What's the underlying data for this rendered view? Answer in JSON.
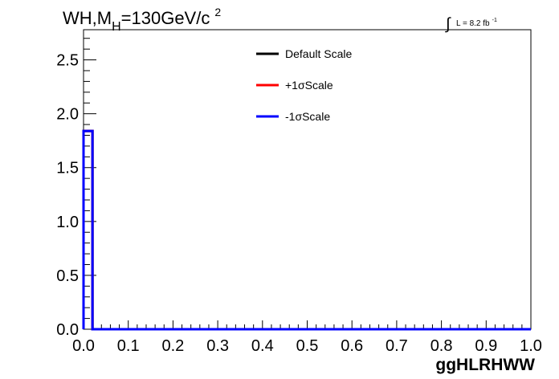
{
  "chart_data": {
    "type": "line",
    "title_main": "WH,M",
    "title_sub": "H",
    "title_rest": "=130GeV/c",
    "title_sup": "2",
    "lumi_integral": "∫",
    "lumi_text": "L = 8.2 fb",
    "lumi_sup": "-1",
    "xlabel": "ggHLRHWW",
    "ylabel": "",
    "xlim": [
      0.0,
      1.0
    ],
    "ylim": [
      0.0,
      2.78
    ],
    "x_ticks": [
      0.0,
      0.1,
      0.2,
      0.3,
      0.4,
      0.5,
      0.6,
      0.7,
      0.8,
      0.9,
      1.0
    ],
    "x_tick_labels": [
      "0.0",
      "0.1",
      "0.2",
      "0.3",
      "0.4",
      "0.5",
      "0.6",
      "0.7",
      "0.8",
      "0.9",
      "1.0"
    ],
    "y_ticks": [
      0.0,
      0.5,
      1.0,
      1.5,
      2.0,
      2.5
    ],
    "y_tick_labels": [
      "0.0",
      "0.5",
      "1.0",
      "1.5",
      "2.0",
      "2.5"
    ],
    "grid": false,
    "legend_position": "top-center",
    "bin_edges": [
      0.0,
      0.02,
      1.0
    ],
    "series": [
      {
        "name": "Default Scale",
        "color": "#000000",
        "bins": [
          1.84,
          0.0
        ]
      },
      {
        "name": "+1σScale",
        "color": "#ff0000",
        "bins": [
          1.84,
          0.0
        ]
      },
      {
        "name": "-1σScale",
        "color": "#0000ff",
        "bins": [
          1.84,
          0.0
        ]
      }
    ]
  }
}
